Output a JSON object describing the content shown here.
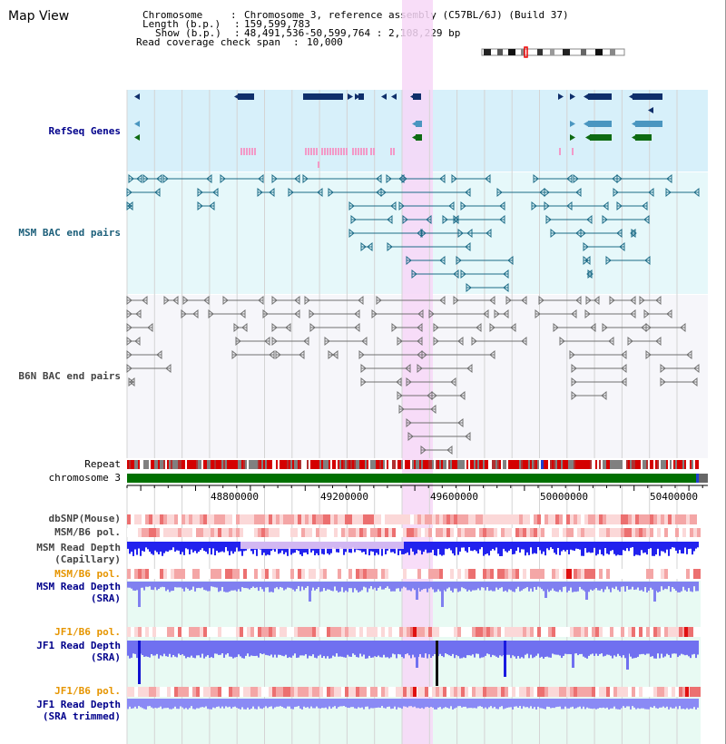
{
  "view_title": "Map View",
  "info": {
    "chromosome_key": "Chromosome",
    "chromosome_value": "Chromosome 3, reference assembly (C57BL/6J) (Build 37)",
    "length_key": "Length (b.p.)",
    "length_value": "159,599,783",
    "show_key": "Show (b.p.)",
    "show_value": "48,491,536-50,599,764 : 2,108,229 bp",
    "coverage_key": "Read coverage check span",
    "coverage_value": "10,000"
  },
  "tracks": {
    "refseq": "RefSeq Genes",
    "msm_bac": "MSM BAC end pairs",
    "b6n_bac": "B6N BAC end pairs",
    "repeat": "Repeat",
    "chromosome": "chromosome 3",
    "dbsnp": "dbSNP(Mouse)",
    "msm_b6_pol_1": "MSM/B6 pol.",
    "msm_read_depth_cap_1": "MSM Read Depth",
    "msm_read_depth_cap_2": "(Capillary)",
    "msm_b6_pol_2": "MSM/B6 pol.",
    "msm_read_depth_sra_1": "MSM Read Depth",
    "msm_read_depth_sra_2": "(SRA)",
    "jf1_b6_pol_1": "JF1/B6 pol.",
    "jf1_read_depth_sra_1": "JF1 Read Depth",
    "jf1_read_depth_sra_2": "(SRA)",
    "jf1_b6_pol_2": "JF1/B6 pol.",
    "jf1_read_depth_trim_1": "JF1 Read Depth",
    "jf1_read_depth_trim_2": "(SRA trimmed)"
  },
  "axis_ticks": [
    "48800000",
    "49200000",
    "49600000",
    "50000000",
    "50400000"
  ],
  "colors": {
    "refseq_bg": "#d7f0fa",
    "bac_bg": "#e6f8fa",
    "b6n_bg": "#f6f6fa",
    "highlight": "#f7d7f7",
    "gene_dark": "#0f2f6b",
    "gene_teal": "#4a96c0",
    "gene_green": "#0e6b12",
    "bac_teal": "#1c6b87",
    "bac_gray": "#707070",
    "chromosome_green": "#007000",
    "depth_blue": "#2222ee"
  }
}
